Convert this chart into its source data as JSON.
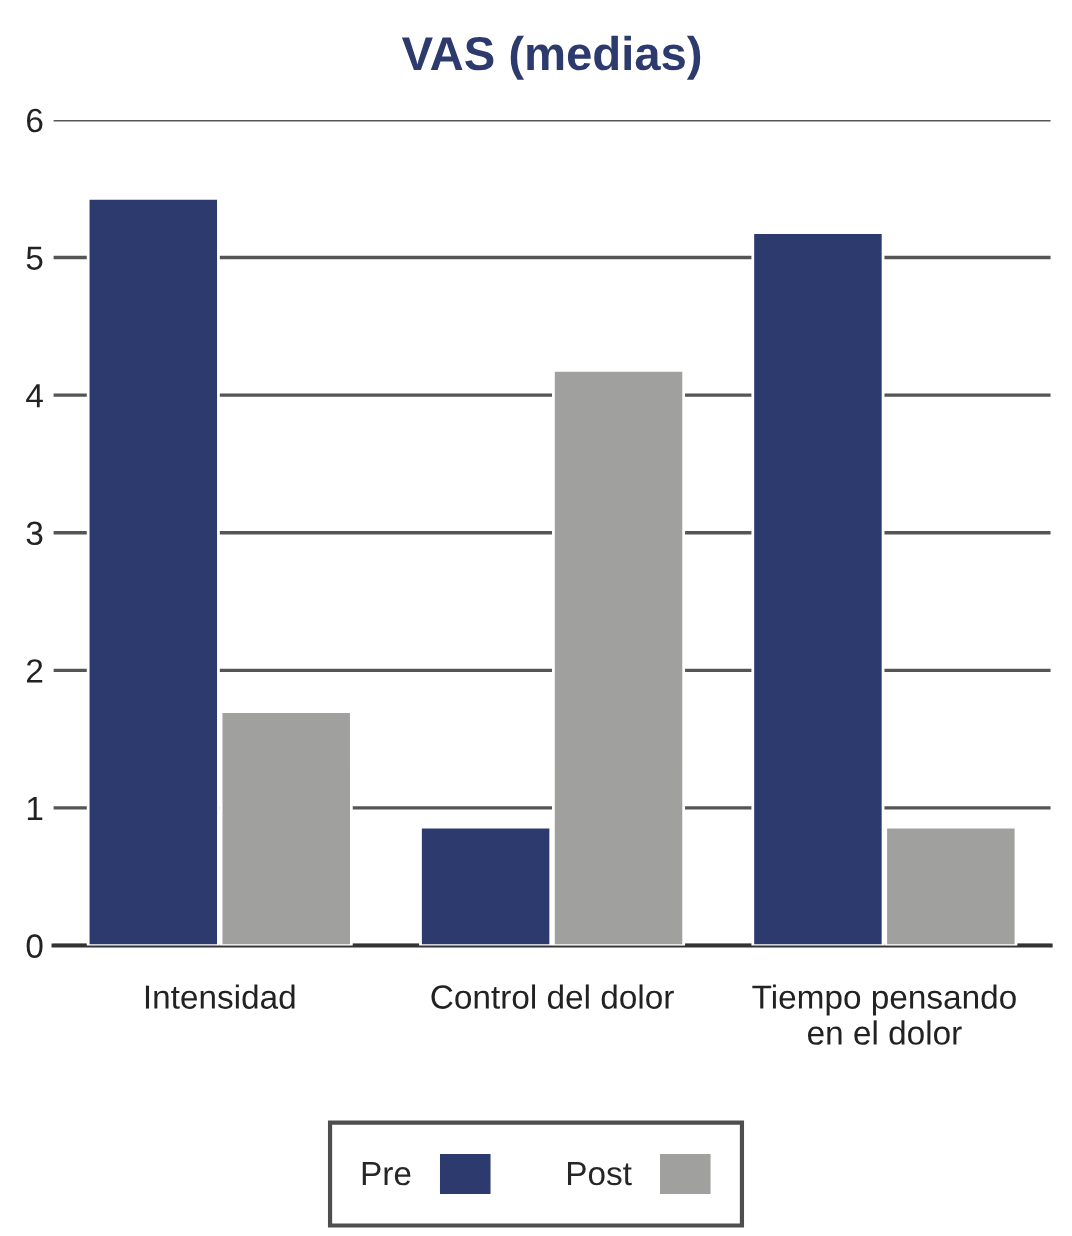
{
  "chart_data": {
    "type": "bar",
    "title": "VAS (medias)",
    "categories": [
      "Intensidad",
      "Control del dolor",
      "Tiempo pensando\nen el dolor"
    ],
    "series": [
      {
        "name": "Pre",
        "color": "#2d3a6e",
        "values": [
          5.43,
          0.86,
          5.18
        ]
      },
      {
        "name": "Post",
        "color": "#a0a09f",
        "values": [
          1.7,
          4.18,
          0.86
        ]
      }
    ],
    "ylim": [
      0,
      6
    ],
    "yticks": [
      0,
      1,
      2,
      3,
      4,
      5,
      6
    ],
    "grid": "y",
    "legend": "bottom"
  }
}
